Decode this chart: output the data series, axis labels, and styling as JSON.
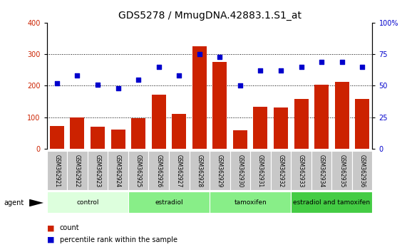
{
  "title": "GDS5278 / MmugDNA.42883.1.S1_at",
  "samples": [
    "GSM362921",
    "GSM362922",
    "GSM362923",
    "GSM362924",
    "GSM362925",
    "GSM362926",
    "GSM362927",
    "GSM362928",
    "GSM362929",
    "GSM362930",
    "GSM362931",
    "GSM362932",
    "GSM362933",
    "GSM362934",
    "GSM362935",
    "GSM362936"
  ],
  "counts": [
    73,
    100,
    70,
    60,
    97,
    172,
    110,
    325,
    275,
    58,
    132,
    130,
    158,
    202,
    212,
    158
  ],
  "percentiles": [
    52,
    58,
    51,
    48,
    55,
    65,
    58,
    75,
    73,
    50,
    62,
    62,
    65,
    69,
    69,
    65
  ],
  "bar_color": "#cc2200",
  "dot_color": "#0000cc",
  "ylim_left": [
    0,
    400
  ],
  "ylim_right": [
    0,
    100
  ],
  "yticks_left": [
    0,
    100,
    200,
    300,
    400
  ],
  "yticks_right": [
    0,
    25,
    50,
    75,
    100
  ],
  "yticklabels_right": [
    "0",
    "25",
    "50",
    "75",
    "100%"
  ],
  "groups": [
    {
      "label": "control",
      "start": 0,
      "end": 4,
      "color": "#ddffdd"
    },
    {
      "label": "estradiol",
      "start": 4,
      "end": 8,
      "color": "#88ee88"
    },
    {
      "label": "tamoxifen",
      "start": 8,
      "end": 12,
      "color": "#88ee88"
    },
    {
      "label": "estradiol and tamoxifen",
      "start": 12,
      "end": 16,
      "color": "#44cc44"
    }
  ],
  "agent_label": "agent",
  "legend_count_label": "count",
  "legend_pct_label": "percentile rank within the sample",
  "title_fontsize": 10,
  "tick_fontsize": 7,
  "label_fontsize": 5.5,
  "bar_width": 0.7
}
